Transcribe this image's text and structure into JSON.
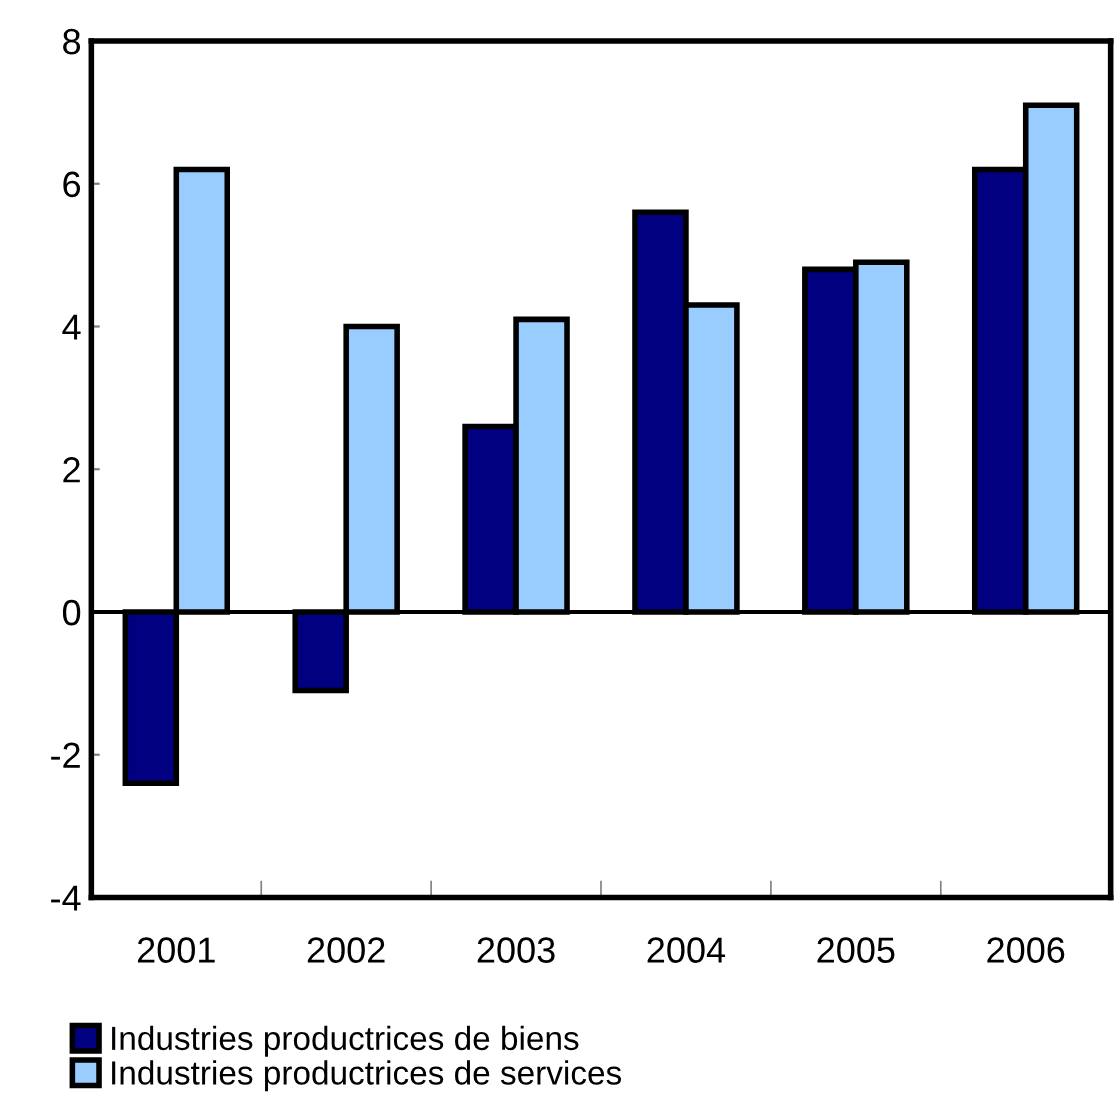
{
  "chart_data": {
    "type": "bar",
    "categories": [
      "2001",
      "2002",
      "2003",
      "2004",
      "2005",
      "2006"
    ],
    "series": [
      {
        "name": "Industries productrices de biens",
        "color": "#000080",
        "values": [
          -2.4,
          -1.1,
          2.6,
          5.6,
          4.8,
          6.2
        ]
      },
      {
        "name": "Industries productrices de services",
        "color": "#99ccff",
        "values": [
          6.2,
          4.0,
          4.1,
          4.3,
          4.9,
          7.1
        ]
      }
    ],
    "ylim": [
      -4,
      8
    ],
    "yticks": [
      -4,
      -2,
      0,
      2,
      4,
      6,
      8
    ],
    "legend": "bottom left"
  }
}
